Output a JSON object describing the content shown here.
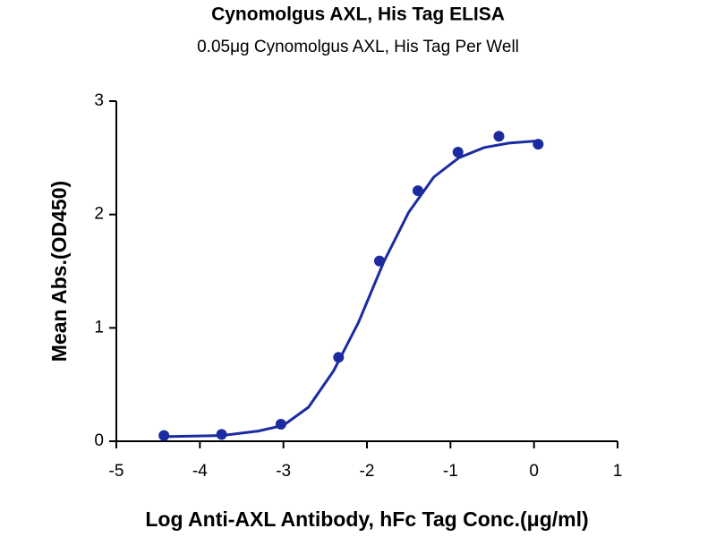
{
  "chart_data": {
    "type": "scatter",
    "title": "Cynomolgus AXL, His Tag ELISA",
    "subtitle": "0.05μg Cynomolgus AXL, His Tag Per Well",
    "x_label": "Log Anti-AXL Antibody, hFc Tag Conc.(μg/ml)",
    "y_label": "Mean Abs.(OD450)",
    "xlim": [
      -5,
      1
    ],
    "xticks": [
      -5,
      -4,
      -3,
      -2,
      -1,
      0,
      1
    ],
    "ylim": [
      0,
      3
    ],
    "yticks": [
      0,
      1,
      2,
      3
    ],
    "series": [
      {
        "mode": "markers",
        "color": "#1c2ba0",
        "x": [
          -4.43,
          -3.74,
          -3.03,
          -2.34,
          -1.85,
          -1.39,
          -0.91,
          -0.42,
          0.05
        ],
        "values": [
          0.05,
          0.06,
          0.15,
          0.74,
          1.59,
          2.21,
          2.55,
          2.69,
          2.62
        ]
      },
      {
        "mode": "line",
        "color": "#1c2ba0",
        "x": [
          -4.43,
          -3.74,
          -3.3,
          -3.0,
          -2.7,
          -2.4,
          -2.1,
          -1.8,
          -1.5,
          -1.2,
          -0.9,
          -0.6,
          -0.3,
          0.05
        ],
        "values": [
          0.04,
          0.05,
          0.09,
          0.14,
          0.3,
          0.62,
          1.05,
          1.58,
          2.02,
          2.33,
          2.5,
          2.59,
          2.63,
          2.65
        ]
      }
    ]
  }
}
